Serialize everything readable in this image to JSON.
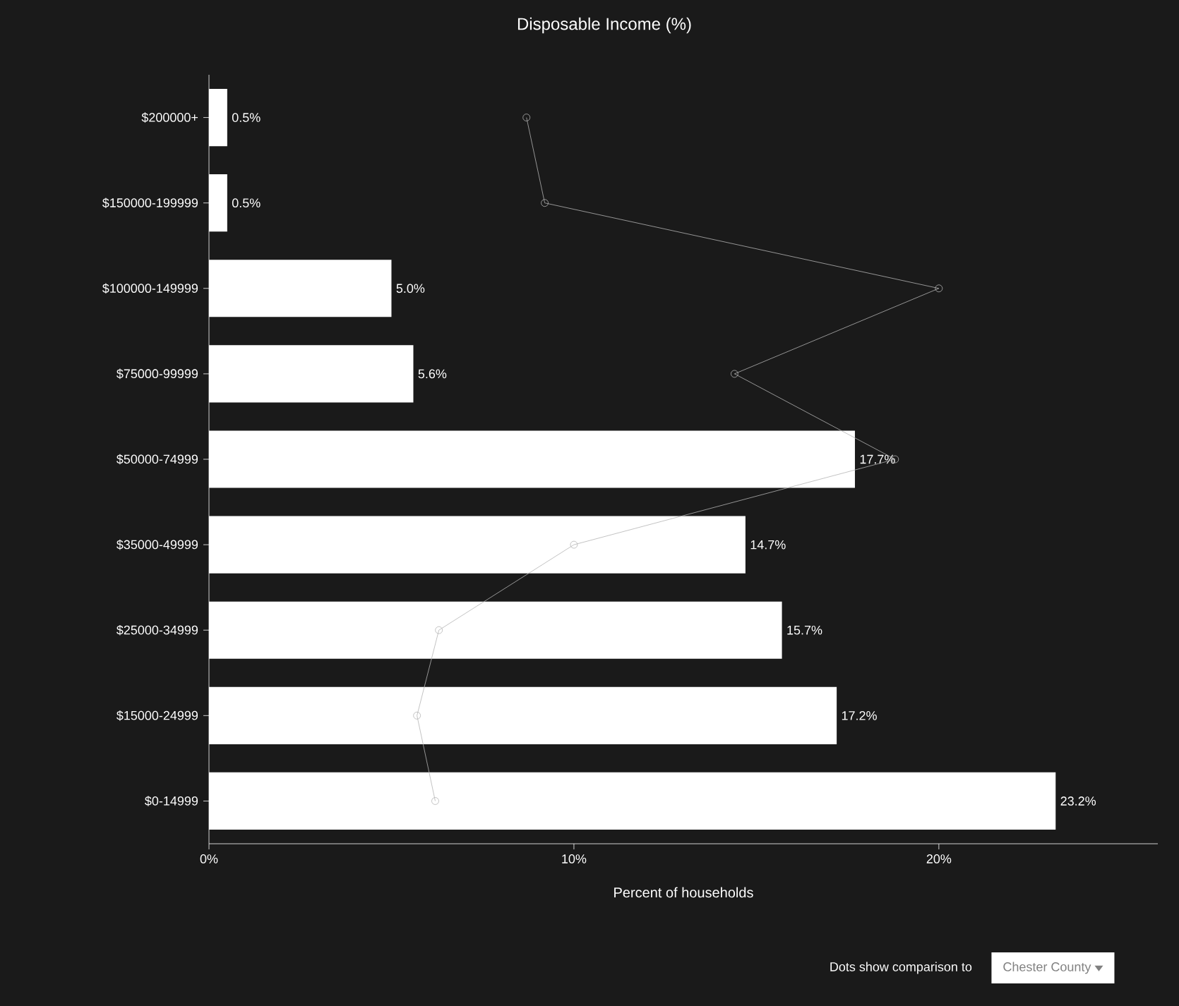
{
  "chart_data": {
    "type": "bar",
    "orientation": "horizontal",
    "title": "Disposable Income (%)",
    "xlabel": "Percent of households",
    "categories": [
      "$200000+",
      "$150000-199999",
      "$100000-149999",
      "$75000-99999",
      "$50000-74999",
      "$35000-49999",
      "$25000-34999",
      "$15000-24999",
      "$0-14999"
    ],
    "series": [
      {
        "color": "#ffffff",
        "values": [
          0.5,
          0.5,
          5.0,
          5.6,
          17.7,
          14.7,
          15.7,
          17.2,
          23.2
        ],
        "value_labels": [
          "0.5%",
          "0.5%",
          "5.0%",
          "5.6%",
          "17.7%",
          "14.7%",
          "15.7%",
          "17.2%",
          "23.2%"
        ]
      },
      {
        "type": "line",
        "color": "#b4b4b4",
        "marker": "circle",
        "values": [
          8.7,
          9.2,
          20.0,
          14.4,
          18.8,
          10.0,
          6.3,
          5.7,
          6.2
        ]
      }
    ],
    "xlim": [
      0,
      26
    ],
    "xticks": [
      {
        "value": 0,
        "label": "0%"
      },
      {
        "value": 10,
        "label": "10%"
      },
      {
        "value": 20,
        "label": "20%"
      }
    ],
    "grid": false,
    "annotations": [
      "Dots show comparison to",
      "Chester County"
    ]
  }
}
